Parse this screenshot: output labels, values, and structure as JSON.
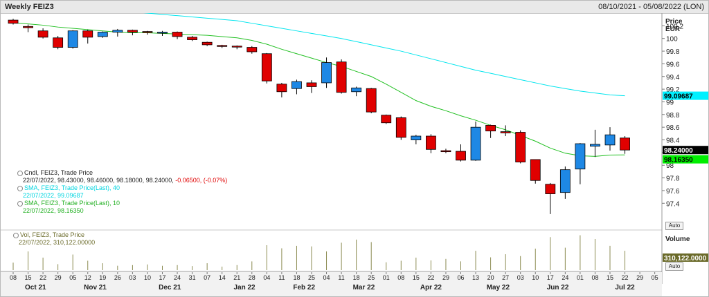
{
  "window": {
    "title": "Weekly FEIZ3",
    "date_range": "08/10/2021 - 05/08/2022 (LON)"
  },
  "price_axis": {
    "label_line1": "Price",
    "label_line2": "EUR",
    "auto_label": "Auto"
  },
  "volume_axis": {
    "label": "Volume",
    "auto_label": "Auto",
    "last_value": "310,122.0000"
  },
  "legend": {
    "candle_title": "Cndl, FEIZ3, Trade Price",
    "candle_values": "22/07/2022, 98.43000, 98.46000, 98.18000, 98.24000,",
    "candle_change": "-0.06500, (-0.07%)",
    "sma40_title": "SMA, FEIZ3, Trade Price(Last),  40",
    "sma40_value": "22/07/2022, 99.09687",
    "sma10_title": "SMA, FEIZ3, Trade Price(Last),  10",
    "sma10_value": "22/07/2022, 98.16350",
    "vol_title": "Vol, FEIZ3, Trade Price",
    "vol_value": "22/07/2022, 310,122.00000"
  },
  "colors": {
    "up": "#1e88e5",
    "down": "#e00000",
    "sma40": "#00e5ee",
    "sma10": "#22c022",
    "volume": "#8a8a50",
    "sma10_tag": "#00ee00",
    "sma40_tag": "#00f0ff",
    "last_tag": "#000000",
    "vol_tag": "#6b6b2a"
  },
  "chart_data": {
    "type": "candlestick",
    "interval": "weekly",
    "ylim": [
      97.0,
      100.4
    ],
    "y_ticks": [
      97.4,
      97.6,
      97.8,
      98.0,
      98.2,
      98.4,
      98.6,
      98.8,
      99.0,
      99.2,
      99.4,
      99.6,
      99.8,
      100.0,
      100.2
    ],
    "y_tick_labels": [
      "97.4",
      "97.6",
      "97.8",
      "98",
      "",
      "98.4",
      "98.6",
      "98.8",
      "99",
      "99.2",
      "99.4",
      "99.6",
      "99.8",
      "100",
      "100.2"
    ],
    "x_tick_labels": [
      "08",
      "15",
      "22",
      "29",
      "05",
      "12",
      "19",
      "26",
      "03",
      "10",
      "17",
      "24",
      "31",
      "07",
      "14",
      "21",
      "28",
      "04",
      "11",
      "18",
      "25",
      "04",
      "11",
      "18",
      "25",
      "01",
      "08",
      "15",
      "22",
      "29",
      "06",
      "13",
      "20",
      "27",
      "03",
      "10",
      "17",
      "24",
      "01",
      "08",
      "15",
      "22",
      "29",
      "05"
    ],
    "month_labels": [
      {
        "label": "Oct 21",
        "index": 1.5
      },
      {
        "label": "Nov 21",
        "index": 5.5
      },
      {
        "label": "Dec 21",
        "index": 10.5
      },
      {
        "label": "Jan 22",
        "index": 15.5
      },
      {
        "label": "Feb 22",
        "index": 19.5
      },
      {
        "label": "Mar 22",
        "index": 23.5
      },
      {
        "label": "Apr 22",
        "index": 28.0
      },
      {
        "label": "May 22",
        "index": 32.5
      },
      {
        "label": "Jun 22",
        "index": 36.5
      },
      {
        "label": "Jul 22",
        "index": 41.0
      }
    ],
    "candles": [
      {
        "o": 100.29,
        "h": 100.31,
        "l": 100.22,
        "c": 100.24
      },
      {
        "o": 100.19,
        "h": 100.22,
        "l": 100.1,
        "c": 100.17
      },
      {
        "o": 100.12,
        "h": 100.16,
        "l": 100.0,
        "c": 100.02
      },
      {
        "o": 100.01,
        "h": 100.04,
        "l": 99.83,
        "c": 99.86
      },
      {
        "o": 99.86,
        "h": 100.13,
        "l": 99.84,
        "c": 100.12
      },
      {
        "o": 100.12,
        "h": 100.14,
        "l": 99.92,
        "c": 100.02
      },
      {
        "o": 100.03,
        "h": 100.11,
        "l": 100.01,
        "c": 100.1
      },
      {
        "o": 100.1,
        "h": 100.15,
        "l": 100.03,
        "c": 100.13
      },
      {
        "o": 100.13,
        "h": 100.14,
        "l": 100.05,
        "c": 100.1
      },
      {
        "o": 100.11,
        "h": 100.12,
        "l": 100.06,
        "c": 100.1
      },
      {
        "o": 100.1,
        "h": 100.12,
        "l": 100.04,
        "c": 100.1
      },
      {
        "o": 100.1,
        "h": 100.11,
        "l": 99.99,
        "c": 100.03
      },
      {
        "o": 100.02,
        "h": 100.04,
        "l": 99.96,
        "c": 99.98
      },
      {
        "o": 99.94,
        "h": 99.95,
        "l": 99.88,
        "c": 99.9
      },
      {
        "o": 99.89,
        "h": 99.9,
        "l": 99.85,
        "c": 99.88
      },
      {
        "o": 99.88,
        "h": 99.89,
        "l": 99.83,
        "c": 99.87
      },
      {
        "o": 99.86,
        "h": 99.88,
        "l": 99.76,
        "c": 99.79
      },
      {
        "o": 99.76,
        "h": 99.77,
        "l": 99.29,
        "c": 99.33
      },
      {
        "o": 99.28,
        "h": 99.3,
        "l": 99.07,
        "c": 99.16
      },
      {
        "o": 99.21,
        "h": 99.35,
        "l": 99.12,
        "c": 99.32
      },
      {
        "o": 99.3,
        "h": 99.34,
        "l": 99.14,
        "c": 99.24
      },
      {
        "o": 99.3,
        "h": 99.7,
        "l": 99.22,
        "c": 99.62
      },
      {
        "o": 99.63,
        "h": 99.67,
        "l": 99.13,
        "c": 99.15
      },
      {
        "o": 99.16,
        "h": 99.24,
        "l": 99.09,
        "c": 99.22
      },
      {
        "o": 99.21,
        "h": 99.22,
        "l": 98.82,
        "c": 98.84
      },
      {
        "o": 98.79,
        "h": 98.8,
        "l": 98.65,
        "c": 98.67
      },
      {
        "o": 98.75,
        "h": 98.77,
        "l": 98.4,
        "c": 98.44
      },
      {
        "o": 98.4,
        "h": 98.48,
        "l": 98.33,
        "c": 98.46
      },
      {
        "o": 98.46,
        "h": 98.49,
        "l": 98.19,
        "c": 98.25
      },
      {
        "o": 98.23,
        "h": 98.26,
        "l": 98.19,
        "c": 98.22
      },
      {
        "o": 98.22,
        "h": 98.33,
        "l": 98.06,
        "c": 98.08
      },
      {
        "o": 98.08,
        "h": 98.69,
        "l": 98.07,
        "c": 98.6
      },
      {
        "o": 98.63,
        "h": 98.64,
        "l": 98.43,
        "c": 98.54
      },
      {
        "o": 98.53,
        "h": 98.63,
        "l": 98.46,
        "c": 98.51
      },
      {
        "o": 98.52,
        "h": 98.55,
        "l": 98.03,
        "c": 98.05
      },
      {
        "o": 98.09,
        "h": 98.09,
        "l": 97.71,
        "c": 97.76
      },
      {
        "o": 97.7,
        "h": 97.72,
        "l": 97.23,
        "c": 97.55
      },
      {
        "o": 97.57,
        "h": 97.98,
        "l": 97.47,
        "c": 97.93
      },
      {
        "o": 97.94,
        "h": 98.35,
        "l": 97.7,
        "c": 98.34
      },
      {
        "o": 98.3,
        "h": 98.56,
        "l": 98.13,
        "c": 98.33
      },
      {
        "o": 98.32,
        "h": 98.6,
        "l": 98.23,
        "c": 98.48
      },
      {
        "o": 98.43,
        "h": 98.46,
        "l": 98.18,
        "c": 98.24
      }
    ],
    "volume": [
      120,
      300,
      200,
      95,
      250,
      150,
      110,
      70,
      80,
      90,
      70,
      80,
      65,
      110,
      55,
      80,
      140,
      400,
      350,
      390,
      380,
      300,
      440,
      490,
      450,
      125,
      150,
      200,
      155,
      180,
      140,
      310,
      205,
      255,
      225,
      345,
      530,
      360,
      560,
      500,
      390,
      310
    ],
    "volume_ylim": [
      0,
      600
    ],
    "series": [
      {
        "name": "SMA 40",
        "values": [
          100.55,
          100.54,
          100.53,
          100.51,
          100.5,
          100.48,
          100.46,
          100.44,
          100.42,
          100.4,
          100.38,
          100.36,
          100.34,
          100.32,
          100.3,
          100.28,
          100.24,
          100.2,
          100.16,
          100.12,
          100.08,
          100.04,
          100.0,
          99.95,
          99.9,
          99.85,
          99.8,
          99.74,
          99.68,
          99.62,
          99.56,
          99.5,
          99.45,
          99.4,
          99.35,
          99.3,
          99.25,
          99.21,
          99.17,
          99.14,
          99.11,
          99.09687
        ]
      },
      {
        "name": "SMA 10",
        "values": [
          100.25,
          100.23,
          100.21,
          100.18,
          100.16,
          100.14,
          100.12,
          100.1,
          100.09,
          100.09,
          100.08,
          100.07,
          100.06,
          100.05,
          100.03,
          100.01,
          99.97,
          99.91,
          99.83,
          99.76,
          99.69,
          99.62,
          99.56,
          99.48,
          99.4,
          99.28,
          99.15,
          99.02,
          98.93,
          98.86,
          98.78,
          98.71,
          98.63,
          98.56,
          98.47,
          98.38,
          98.27,
          98.19,
          98.15,
          98.14,
          98.16,
          98.1635
        ]
      }
    ],
    "last_price_tag": "98.24000",
    "sma40_tag": "99.09687",
    "sma10_tag": "98.16350"
  }
}
